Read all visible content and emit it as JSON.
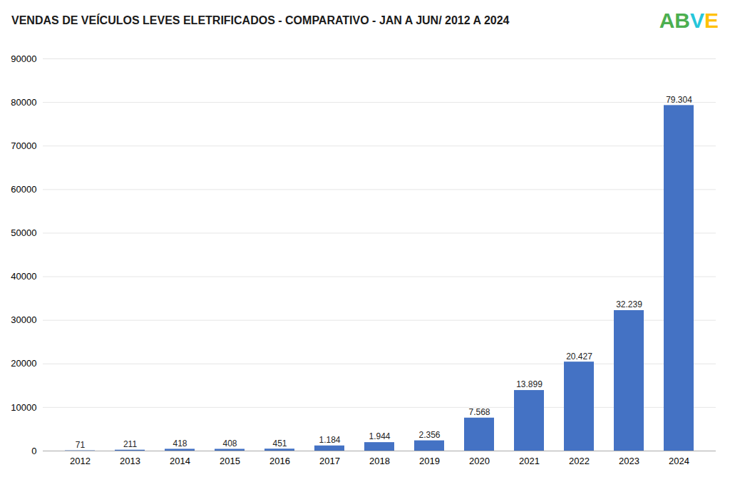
{
  "chart_data": {
    "type": "bar",
    "title": "VENDAS DE VEÍCULOS LEVES ELETRIFICADOS - COMPARATIVO - JAN A JUN/ 2012 A 2024",
    "categories": [
      "2012",
      "2013",
      "2014",
      "2015",
      "2016",
      "2017",
      "2018",
      "2019",
      "2020",
      "2021",
      "2022",
      "2023",
      "2024"
    ],
    "values": [
      71,
      211,
      418,
      408,
      451,
      1184,
      1944,
      2356,
      7568,
      13899,
      20427,
      32239,
      79304
    ],
    "value_labels": [
      "71",
      "211",
      "418",
      "408",
      "451",
      "1.184",
      "1.944",
      "2.356",
      "7.568",
      "13.899",
      "20.427",
      "32.239",
      "79.304"
    ],
    "data_labels": true,
    "color": "#4472C4",
    "ylim": [
      0,
      90000
    ],
    "yticks": [
      0,
      10000,
      20000,
      30000,
      40000,
      50000,
      60000,
      70000,
      80000,
      90000
    ],
    "grid": true,
    "annotations": [
      {
        "text": "AB",
        "color": "#4CAF50"
      },
      {
        "text": "V",
        "color": "#26C6DA"
      },
      {
        "text": "E",
        "color": "#FFC107"
      }
    ]
  }
}
